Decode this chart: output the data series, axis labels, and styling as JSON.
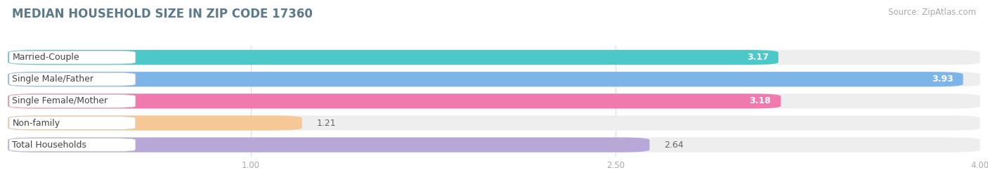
{
  "title": "MEDIAN HOUSEHOLD SIZE IN ZIP CODE 17360",
  "source": "Source: ZipAtlas.com",
  "categories": [
    "Married-Couple",
    "Single Male/Father",
    "Single Female/Mother",
    "Non-family",
    "Total Households"
  ],
  "values": [
    3.17,
    3.93,
    3.18,
    1.21,
    2.64
  ],
  "bar_colors": [
    "#4DC8C8",
    "#7EB5E8",
    "#F07AAE",
    "#F5C896",
    "#B8A8D8"
  ],
  "label_colors": [
    "white",
    "white",
    "white",
    "gray",
    "gray"
  ],
  "xlim": [
    0.0,
    4.0
  ],
  "xmin": 0.0,
  "xmax": 4.0,
  "xticks": [
    1.0,
    2.5,
    4.0
  ],
  "background_color": "#ffffff",
  "bar_bg_color": "#eeeeee",
  "title_color": "#5a7a8a",
  "title_fontsize": 12,
  "source_fontsize": 8.5,
  "value_fontsize": 9,
  "category_fontsize": 9
}
